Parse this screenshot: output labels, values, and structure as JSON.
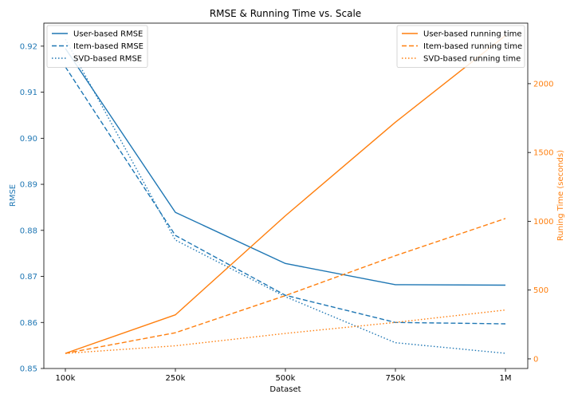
{
  "chart_data": {
    "type": "line",
    "title": "RMSE & Running Time vs. Scale",
    "xlabel": "Dataset",
    "ylabel_left": "RMSE",
    "ylabel_right": "Runing Time (seconds)",
    "categories": [
      "100k",
      "250k",
      "500k",
      "750k",
      "1M"
    ],
    "ylim_left": [
      0.85,
      0.925
    ],
    "yticks_left": [
      0.85,
      0.86,
      0.87,
      0.88,
      0.89,
      0.9,
      0.91,
      0.92
    ],
    "ytick_labels_left": [
      "0.85",
      "0.86",
      "0.87",
      "0.88",
      "0.89",
      "0.90",
      "0.91",
      "0.92"
    ],
    "ylim_right": [
      -70,
      2440
    ],
    "yticks_right": [
      0,
      500,
      1000,
      1500,
      2000
    ],
    "ytick_labels_right": [
      "0",
      "500",
      "1000",
      "1500",
      "2000"
    ],
    "colors": {
      "rmse": "#1f77b4",
      "time": "#ff7f0e"
    },
    "rmse_series": [
      {
        "name": "User-based RMSE",
        "style": "solid",
        "values": [
          0.9195,
          0.8839,
          0.8728,
          0.8682,
          0.8681
        ]
      },
      {
        "name": "Item-based RMSE",
        "style": "dashed",
        "values": [
          0.9155,
          0.8789,
          0.8659,
          0.86,
          0.8597
        ]
      },
      {
        "name": "SVD-based RMSE",
        "style": "dotted",
        "values": [
          0.9215,
          0.8779,
          0.8656,
          0.8556,
          0.8533
        ]
      }
    ],
    "time_series": [
      {
        "name": "User-based running time",
        "style": "solid",
        "values": [
          40,
          320,
          1040,
          1720,
          2350
        ]
      },
      {
        "name": "Item-based running time",
        "style": "dashed",
        "values": [
          40,
          190,
          460,
          750,
          1020
        ]
      },
      {
        "name": "SVD-based running time",
        "style": "dotted",
        "values": [
          40,
          95,
          185,
          265,
          355
        ]
      }
    ],
    "legend_left_position": "top-left",
    "legend_right_position": "top-right",
    "grid": false
  }
}
